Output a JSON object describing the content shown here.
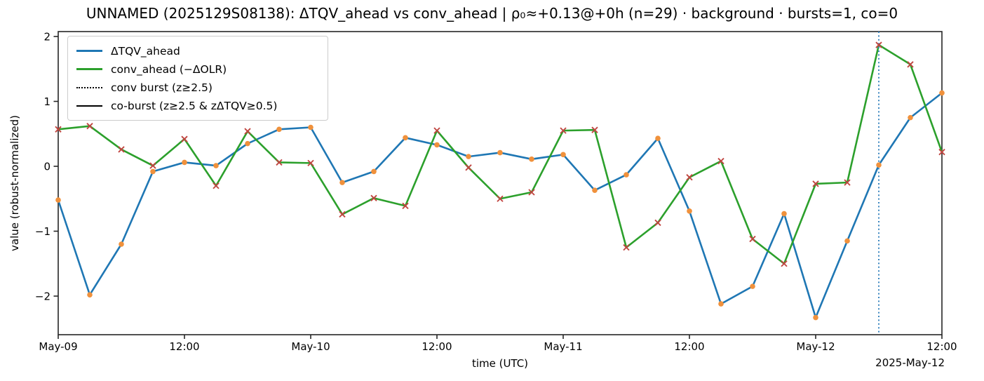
{
  "chart_data": {
    "type": "line",
    "title": "UNNAMED (2025129S08138): ΔTQV_ahead vs conv_ahead | ρ₀≈+0.13@+0h (n=29) · background · bursts=1, co=0",
    "xlabel": "time (UTC)",
    "ylabel": "value (robust-normalized)",
    "x_axis_date_note": "2025-May-12",
    "grid": false,
    "legend_position": "upper left",
    "ylim": [
      -2.59,
      2.08
    ],
    "y_ticks": [
      2,
      1,
      0,
      -1,
      -2
    ],
    "x_tick_hours": [
      0,
      12,
      24,
      36,
      48,
      60,
      72,
      84
    ],
    "x_tick_labels": [
      "May-09",
      "12:00",
      "May-10",
      "12:00",
      "May-11",
      "12:00",
      "May-12",
      "12:00"
    ],
    "x_hours": [
      0,
      3,
      6,
      9,
      12,
      15,
      18,
      21,
      24,
      27,
      30,
      33,
      36,
      39,
      42,
      45,
      48,
      51,
      54,
      57,
      60,
      63,
      66,
      69,
      72,
      75,
      78,
      81,
      84
    ],
    "series": [
      {
        "name": "ΔTQV_ahead",
        "color": "#1f77b4",
        "line_width": 2.6,
        "marker": "circle",
        "marker_color": "#f0913c",
        "values": [
          -0.52,
          -1.98,
          -1.2,
          -0.08,
          0.06,
          0.01,
          0.35,
          0.57,
          0.6,
          -0.25,
          -0.08,
          0.44,
          0.33,
          0.15,
          0.21,
          0.11,
          0.18,
          -0.37,
          -0.13,
          0.43,
          -0.69,
          -2.12,
          -1.85,
          -0.73,
          -2.33,
          -1.15,
          0.02,
          0.75,
          1.13
        ]
      },
      {
        "name": "conv_ahead (−ΔOLR)",
        "color": "#2ca02c",
        "line_width": 2.6,
        "marker": "x",
        "marker_color": "#c04540",
        "values": [
          0.57,
          0.62,
          0.26,
          0.01,
          0.42,
          -0.3,
          0.54,
          0.06,
          0.05,
          -0.74,
          -0.49,
          -0.61,
          0.55,
          -0.02,
          -0.5,
          -0.4,
          0.55,
          0.56,
          -1.25,
          -0.87,
          -0.17,
          0.08,
          -1.12,
          -1.5,
          -0.27,
          -0.25,
          1.87,
          1.57,
          0.22
        ]
      }
    ],
    "conv_burst_vlines_hours": [
      78
    ],
    "co_burst_vlines_hours": [],
    "vline_color": "#3c87c0",
    "axis_color": "#262626",
    "legend": [
      {
        "label": "ΔTQV_ahead",
        "line": "solid",
        "color": "#1f77b4",
        "thickness": 3
      },
      {
        "label": "conv_ahead (−ΔOLR)",
        "line": "solid",
        "color": "#2ca02c",
        "thickness": 3
      },
      {
        "label": "conv burst (z≥2.5)",
        "line": "dotted",
        "color": "#000000",
        "thickness": 2
      },
      {
        "label": "co-burst (z≥2.5 & zΔTQV≥0.5)",
        "line": "solid",
        "color": "#000000",
        "thickness": 2
      }
    ]
  }
}
